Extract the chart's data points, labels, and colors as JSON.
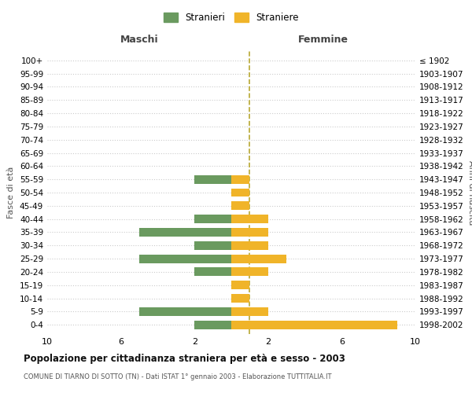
{
  "age_groups": [
    "100+",
    "95-99",
    "90-94",
    "85-89",
    "80-84",
    "75-79",
    "70-74",
    "65-69",
    "60-64",
    "55-59",
    "50-54",
    "45-49",
    "40-44",
    "35-39",
    "30-34",
    "25-29",
    "20-24",
    "15-19",
    "10-14",
    "5-9",
    "0-4"
  ],
  "birth_years": [
    "≤ 1902",
    "1903-1907",
    "1908-1912",
    "1913-1917",
    "1918-1922",
    "1923-1927",
    "1928-1932",
    "1933-1937",
    "1938-1942",
    "1943-1947",
    "1948-1952",
    "1953-1957",
    "1958-1962",
    "1963-1967",
    "1968-1972",
    "1973-1977",
    "1978-1982",
    "1983-1987",
    "1988-1992",
    "1993-1997",
    "1998-2002"
  ],
  "males": [
    0,
    0,
    0,
    0,
    0,
    0,
    0,
    0,
    0,
    2,
    0,
    0,
    2,
    5,
    2,
    5,
    2,
    0,
    0,
    5,
    2
  ],
  "females": [
    0,
    0,
    0,
    0,
    0,
    0,
    0,
    0,
    0,
    1,
    1,
    1,
    2,
    2,
    2,
    3,
    2,
    1,
    1,
    2,
    9
  ],
  "male_color": "#6a9a5f",
  "female_color": "#f0b429",
  "dashed_line_color": "#b8a832",
  "title": "Popolazione per cittadinanza straniera per età e sesso - 2003",
  "subtitle": "COMUNE DI TIARNO DI SOTTO (TN) - Dati ISTAT 1° gennaio 2003 - Elaborazione TUTTITALIA.IT",
  "xlabel_left": "Maschi",
  "xlabel_right": "Femmine",
  "ylabel_left": "Fasce di età",
  "ylabel_right": "Anni di nascita",
  "legend_male": "Stranieri",
  "legend_female": "Straniere",
  "xlim": 10,
  "background_color": "#ffffff",
  "grid_color": "#cccccc"
}
